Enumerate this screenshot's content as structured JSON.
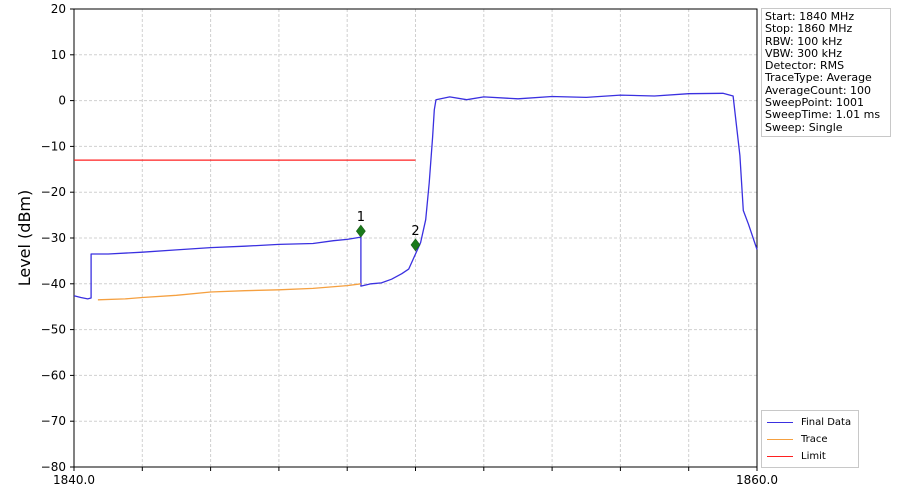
{
  "chart_data": {
    "type": "line",
    "xlim": [
      1840.0,
      1860.0
    ],
    "ylim": [
      -80,
      20
    ],
    "x_ticks": [
      1840.0,
      1860.0
    ],
    "y_ticks": [
      20,
      10,
      0,
      -10,
      -20,
      -30,
      -40,
      -50,
      -60,
      -70,
      -80
    ],
    "ylabel": "Level (dBm)",
    "grid": true,
    "legend_position": "bottom-right",
    "series": [
      {
        "name": "Final Data",
        "color": "#3a30e0",
        "points": [
          [
            1840.0,
            -42.6
          ],
          [
            1840.2,
            -43.0
          ],
          [
            1840.4,
            -43.3
          ],
          [
            1840.5,
            -43.1
          ],
          [
            1840.5,
            -33.5
          ],
          [
            1841.0,
            -33.5
          ],
          [
            1842.0,
            -33.1
          ],
          [
            1843.0,
            -32.6
          ],
          [
            1844.0,
            -32.1
          ],
          [
            1845.0,
            -31.8
          ],
          [
            1846.0,
            -31.4
          ],
          [
            1847.0,
            -31.2
          ],
          [
            1847.6,
            -30.6
          ],
          [
            1848.0,
            -30.3
          ],
          [
            1848.4,
            -29.8
          ],
          [
            1848.4,
            -40.5
          ],
          [
            1848.7,
            -40.0
          ],
          [
            1849.0,
            -39.8
          ],
          [
            1849.3,
            -39.0
          ],
          [
            1849.6,
            -37.8
          ],
          [
            1849.8,
            -36.8
          ],
          [
            1850.0,
            -33.5
          ],
          [
            1850.15,
            -31.0
          ],
          [
            1850.3,
            -26.0
          ],
          [
            1850.4,
            -18.0
          ],
          [
            1850.5,
            -8.0
          ],
          [
            1850.55,
            -2.0
          ],
          [
            1850.6,
            0.2
          ],
          [
            1851.0,
            0.8
          ],
          [
            1851.5,
            0.2
          ],
          [
            1852.0,
            0.8
          ],
          [
            1853.0,
            0.4
          ],
          [
            1854.0,
            0.9
          ],
          [
            1855.0,
            0.7
          ],
          [
            1856.0,
            1.2
          ],
          [
            1857.0,
            1.0
          ],
          [
            1858.0,
            1.5
          ],
          [
            1859.0,
            1.6
          ],
          [
            1859.3,
            1.0
          ],
          [
            1859.5,
            -12.0
          ],
          [
            1859.6,
            -24.0
          ],
          [
            1859.75,
            -27.0
          ],
          [
            1860.0,
            -32.5
          ]
        ]
      },
      {
        "name": "Trace",
        "color": "#f5a040",
        "points": [
          [
            1840.7,
            -43.5
          ],
          [
            1841.5,
            -43.3
          ],
          [
            1842.0,
            -43.0
          ],
          [
            1843.0,
            -42.5
          ],
          [
            1844.0,
            -41.8
          ],
          [
            1845.0,
            -41.5
          ],
          [
            1846.0,
            -41.3
          ],
          [
            1847.0,
            -41.0
          ],
          [
            1848.0,
            -40.4
          ],
          [
            1848.4,
            -40.0
          ]
        ]
      },
      {
        "name": "Limit",
        "color": "#ff2020",
        "points": [
          [
            1840.0,
            -13.0
          ],
          [
            1850.0,
            -13.0
          ]
        ]
      }
    ],
    "markers": [
      {
        "label": "1",
        "x": 1848.4,
        "y": -28.5
      },
      {
        "label": "2",
        "x": 1850.0,
        "y": -31.5
      }
    ],
    "info": [
      "Start: 1840 MHz",
      "Stop: 1860 MHz",
      "RBW: 100 kHz",
      "VBW: 300 kHz",
      "Detector: RMS",
      "TraceType: Average",
      "AverageCount: 100",
      "SweepPoint: 1001",
      "SweepTime: 1.01 ms",
      "Sweep: Single"
    ]
  }
}
